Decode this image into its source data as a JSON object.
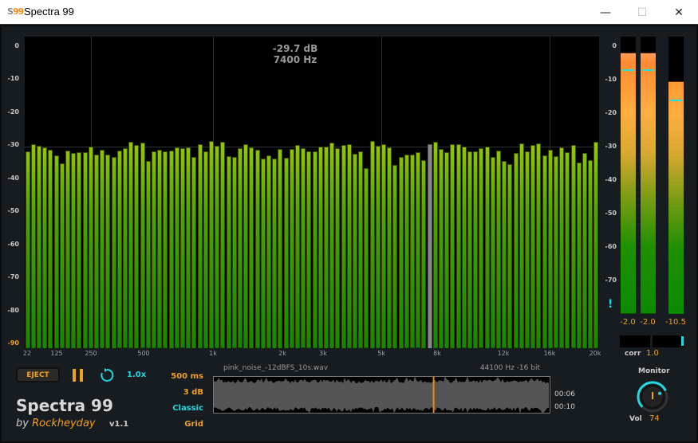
{
  "window": {
    "title": "Spectra 99",
    "icon_text_s": "S",
    "icon_text_n": "99",
    "minimize": "—",
    "maximize": "☐",
    "close": "✕"
  },
  "spectrum": {
    "readout_db": "-29.7 dB",
    "readout_hz": "7400 Hz",
    "y_ticks": [
      "0",
      "-10",
      "-20",
      "-30",
      "-40",
      "-50",
      "-60",
      "-70",
      "-80",
      "-90"
    ],
    "x_ticks": [
      "22",
      "125",
      "250",
      "500",
      "1k",
      "2k",
      "3k",
      "5k",
      "8k",
      "12k",
      "16k",
      "20k"
    ],
    "selected_bar": 70,
    "bar_db": [
      -31.9,
      -29.7,
      -30.2,
      -30.6,
      -31.3,
      -33.1,
      -35.5,
      -31.6,
      -32.3,
      -32.0,
      -32.1,
      -30.3,
      -32.7,
      -31.4,
      -32.7,
      -33.5,
      -31.7,
      -31.0,
      -29.0,
      -29.8,
      -29.3,
      -34.8,
      -31.9,
      -31.4,
      -31.9,
      -31.5,
      -30.7,
      -31.0,
      -30.6,
      -33.5,
      -29.7,
      -31.8,
      -28.7,
      -30.2,
      -29.0,
      -33.3,
      -33.6,
      -31.0,
      -29.6,
      -30.6,
      -31.4,
      -33.9,
      -33.1,
      -33.9,
      -31.1,
      -33.8,
      -31.2,
      -29.8,
      -31.0,
      -31.9,
      -31.9,
      -30.3,
      -30.3,
      -29.2,
      -30.8,
      -29.9,
      -29.7,
      -32.6,
      -31.9,
      -37.0,
      -28.6,
      -30.2,
      -29.6,
      -30.6,
      -35.9,
      -33.5,
      -32.9,
      -32.9,
      -32.2,
      -34.4,
      -29.7,
      -29.0,
      -31.1,
      -32.1,
      -29.7,
      -29.7,
      -30.5,
      -31.8,
      -31.8,
      -31.0,
      -30.3,
      -33.6,
      -31.5,
      -34.8,
      -35.6,
      -32.4,
      -29.4,
      -31.9,
      -29.9,
      -29.4,
      -33.0,
      -31.4,
      -33.4,
      -30.7,
      -32.1,
      -30.0,
      -35.2,
      -32.3,
      -34.5,
      -29.0
    ],
    "ylim": [
      -90,
      0
    ]
  },
  "meters": {
    "scale": [
      "0",
      "-10",
      "-20",
      "-30",
      "-40",
      "-50",
      "-60",
      "-70"
    ],
    "clip_indicator": "!",
    "channels": [
      {
        "level_db": -2.0,
        "peak_db": -7.0,
        "value": "-2.0"
      },
      {
        "level_db": -2.0,
        "peak_db": -7.0,
        "value": "-2.0"
      },
      {
        "level_db": -10.5,
        "peak_db": -16.0,
        "value": "-10.5"
      }
    ],
    "corr_label": "corr",
    "corr_value": "1.0"
  },
  "monitor": {
    "label": "Monitor",
    "vol_label": "Vol",
    "vol_value": "74",
    "vol_percent": 74
  },
  "transport": {
    "eject": "EJECT",
    "speed": "1.0x"
  },
  "options": {
    "window": "500 ms",
    "step": "3 dB",
    "style": "Classic",
    "grid": "Grid"
  },
  "file": {
    "name": "pink_noise_-12dBFS_10s.wav",
    "format": "44100 Hz -16 bit",
    "position": "00:06",
    "duration": "00:10",
    "progress": 0.6
  },
  "brand": {
    "name": "Spectra 99",
    "by": "by",
    "author": "Rockheyday",
    "version": "v1.1"
  },
  "colors": {
    "accent": "#f0a020",
    "cyan": "#22d8e0",
    "bar_top": "#d6ec00",
    "bar_bottom": "#0e8a00"
  }
}
